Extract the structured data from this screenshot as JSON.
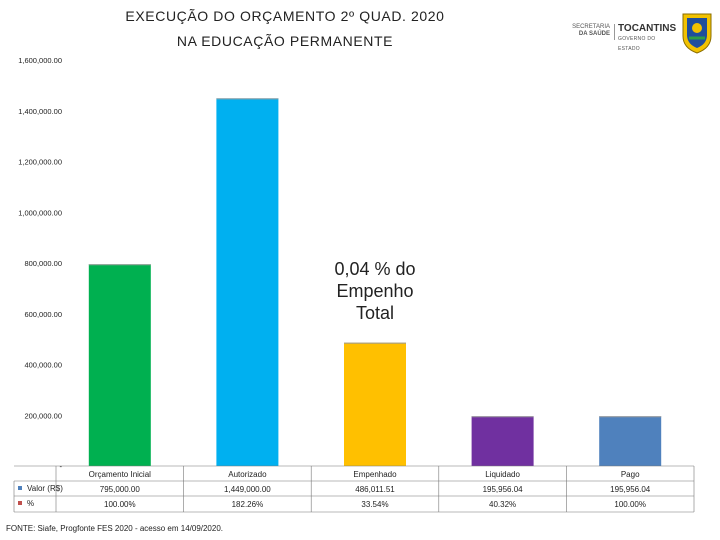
{
  "header": {
    "title_line1": "EXECUÇÃO DO ORÇAMENTO 2º QUAD. 2020",
    "title_line2": "NA EDUCAÇÃO PERMANENTE"
  },
  "logos": {
    "secretaria_line1": "SECRETARIA",
    "secretaria_line2": "DA SAÚDE",
    "tocantins": "TOCANTINS",
    "governo": "GOVERNO DO ESTADO"
  },
  "annotation": {
    "line1": "0,04 % do",
    "line2": "Empenho",
    "line3": "Total"
  },
  "footer": "FONTE: Siafe, Progfonte FES 2020 - acesso em 14/09/2020.",
  "chart_data": {
    "type": "bar",
    "categories": [
      "Orçamento Inicial",
      "Autorizado",
      "Empenhado",
      "Liquidado",
      "Pago"
    ],
    "series": [
      {
        "name": "Valor (R$)",
        "values": [
          795000.0,
          1449000.0,
          486011.51,
          195956.04,
          195956.04
        ],
        "labels": [
          "795,000.00",
          "1,449,000.00",
          "486,011.51",
          "195,956.04",
          "195,956.04"
        ]
      },
      {
        "name": "%",
        "labels": [
          "100.00%",
          "182.26%",
          "33.54%",
          "40.32%",
          "100.00%"
        ]
      }
    ],
    "bar_colors": [
      "#00b050",
      "#00b0f0",
      "#ffc000",
      "#7030a0",
      "#4f81bd"
    ],
    "legend_colors": [
      "#4f81bd",
      "#c0504d"
    ],
    "ylim": [
      0,
      1600000
    ],
    "yticks": [
      0,
      200000,
      400000,
      600000,
      800000,
      1000000,
      1200000,
      1400000,
      1600000
    ],
    "ytick_labels": [
      "-",
      "200,000.00",
      "400,000.00",
      "600,000.00",
      "800,000.00",
      "1,000,000.00",
      "1,200,000.00",
      "1,400,000.00",
      "1,600,000.00"
    ],
    "grid": false
  }
}
